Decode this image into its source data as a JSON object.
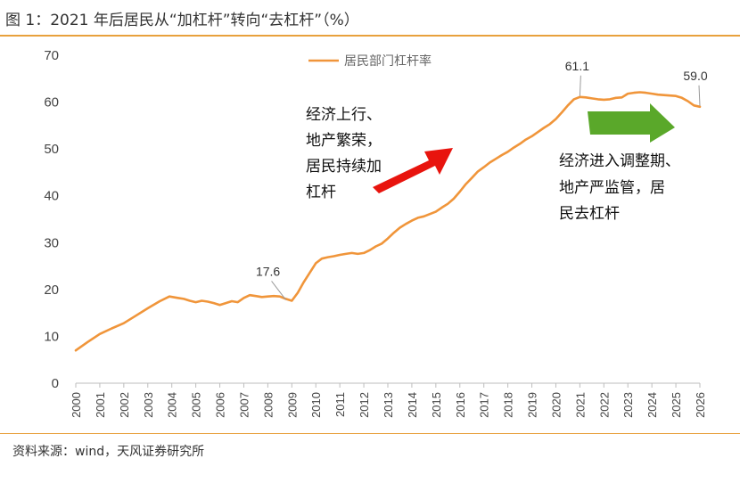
{
  "title": "图 1：2021 年后居民从“加杠杆”转向“去杠杆”（%）",
  "source": "资料来源：wind，天风证券研究所",
  "colors": {
    "line": "#F0953A",
    "rule": "#E8A13D",
    "up_arrow": "#E8140E",
    "flat_arrow": "#5AA82A",
    "callout": "#9A9A9A"
  },
  "chart_data": {
    "type": "line",
    "title": "",
    "xlabel": "",
    "ylabel": "",
    "ylim": [
      0,
      70
    ],
    "yticks": [
      0,
      10,
      20,
      30,
      40,
      50,
      60,
      70
    ],
    "xlim": [
      2000,
      2026
    ],
    "xticks": [
      "2000",
      "2001",
      "2002",
      "2003",
      "2004",
      "2005",
      "2006",
      "2007",
      "2008",
      "2009",
      "2010",
      "2011",
      "2012",
      "2013",
      "2014",
      "2015",
      "2016",
      "2017",
      "2018",
      "2019",
      "2020",
      "2021",
      "2022",
      "2023",
      "2024",
      "2025",
      "2026"
    ],
    "grid": false,
    "legend_position": "top",
    "series": [
      {
        "name": "居民部门杠杆率",
        "x": [
          2000.0,
          2000.5,
          2001.0,
          2001.5,
          2002.0,
          2002.5,
          2003.0,
          2003.5,
          2003.9,
          2004.25,
          2004.5,
          2004.75,
          2005.0,
          2005.25,
          2005.5,
          2005.75,
          2006.0,
          2006.25,
          2006.5,
          2006.75,
          2007.0,
          2007.25,
          2007.5,
          2007.75,
          2008.0,
          2008.25,
          2008.5,
          2008.75,
          2009.0,
          2009.25,
          2009.5,
          2009.75,
          2010.0,
          2010.25,
          2010.5,
          2010.75,
          2011.0,
          2011.25,
          2011.5,
          2011.75,
          2012.0,
          2012.25,
          2012.5,
          2012.75,
          2013.0,
          2013.25,
          2013.5,
          2013.75,
          2014.0,
          2014.25,
          2014.5,
          2014.75,
          2015.0,
          2015.25,
          2015.5,
          2015.75,
          2016.0,
          2016.25,
          2016.5,
          2016.75,
          2017.0,
          2017.25,
          2017.5,
          2017.75,
          2018.0,
          2018.25,
          2018.5,
          2018.75,
          2019.0,
          2019.25,
          2019.5,
          2019.75,
          2020.0,
          2020.25,
          2020.5,
          2020.75,
          2021.0,
          2021.25,
          2021.5,
          2021.75,
          2022.0,
          2022.25,
          2022.5,
          2022.75,
          2023.0,
          2023.25,
          2023.5,
          2023.75,
          2024.0,
          2024.25,
          2024.5,
          2024.75,
          2025.0,
          2025.25,
          2025.5,
          2025.75,
          2026.0
        ],
        "values": [
          7.0,
          8.8,
          10.5,
          11.7,
          12.8,
          14.4,
          16.0,
          17.5,
          18.5,
          18.2,
          18.0,
          17.6,
          17.3,
          17.6,
          17.4,
          17.1,
          16.7,
          17.1,
          17.5,
          17.3,
          18.2,
          18.8,
          18.6,
          18.4,
          18.5,
          18.6,
          18.5,
          18.0,
          17.6,
          19.3,
          21.6,
          23.6,
          25.6,
          26.6,
          26.9,
          27.1,
          27.4,
          27.6,
          27.8,
          27.6,
          27.8,
          28.4,
          29.2,
          29.8,
          30.9,
          32.1,
          33.2,
          34.0,
          34.7,
          35.3,
          35.6,
          36.1,
          36.6,
          37.5,
          38.3,
          39.4,
          40.9,
          42.5,
          43.8,
          45.2,
          46.1,
          47.1,
          47.9,
          48.7,
          49.4,
          50.3,
          51.1,
          52.0,
          52.7,
          53.6,
          54.5,
          55.3,
          56.4,
          57.8,
          59.3,
          60.6,
          61.1,
          61.0,
          60.8,
          60.6,
          60.5,
          60.6,
          60.9,
          61.0,
          61.8,
          62.0,
          62.1,
          62.0,
          61.8,
          61.6,
          61.5,
          61.4,
          61.3,
          60.9,
          60.2,
          59.3,
          59.0
        ]
      }
    ],
    "annotations": [
      {
        "label": "17.6",
        "x": 2008.75,
        "y": 17.6
      },
      {
        "label": "61.1",
        "x": 2021.0,
        "y": 61.1
      },
      {
        "label": "59.0",
        "x": 2026.0,
        "y": 59.0
      }
    ],
    "notes": [
      {
        "id": "note-leverage-up",
        "lines": [
          "经济上行、",
          "地产繁荣，",
          "居民持续加",
          "杠杆"
        ]
      },
      {
        "id": "note-deleverage",
        "lines": [
          "经济进入调整期、",
          "地产严监管，居",
          "民去杠杆"
        ]
      }
    ]
  }
}
